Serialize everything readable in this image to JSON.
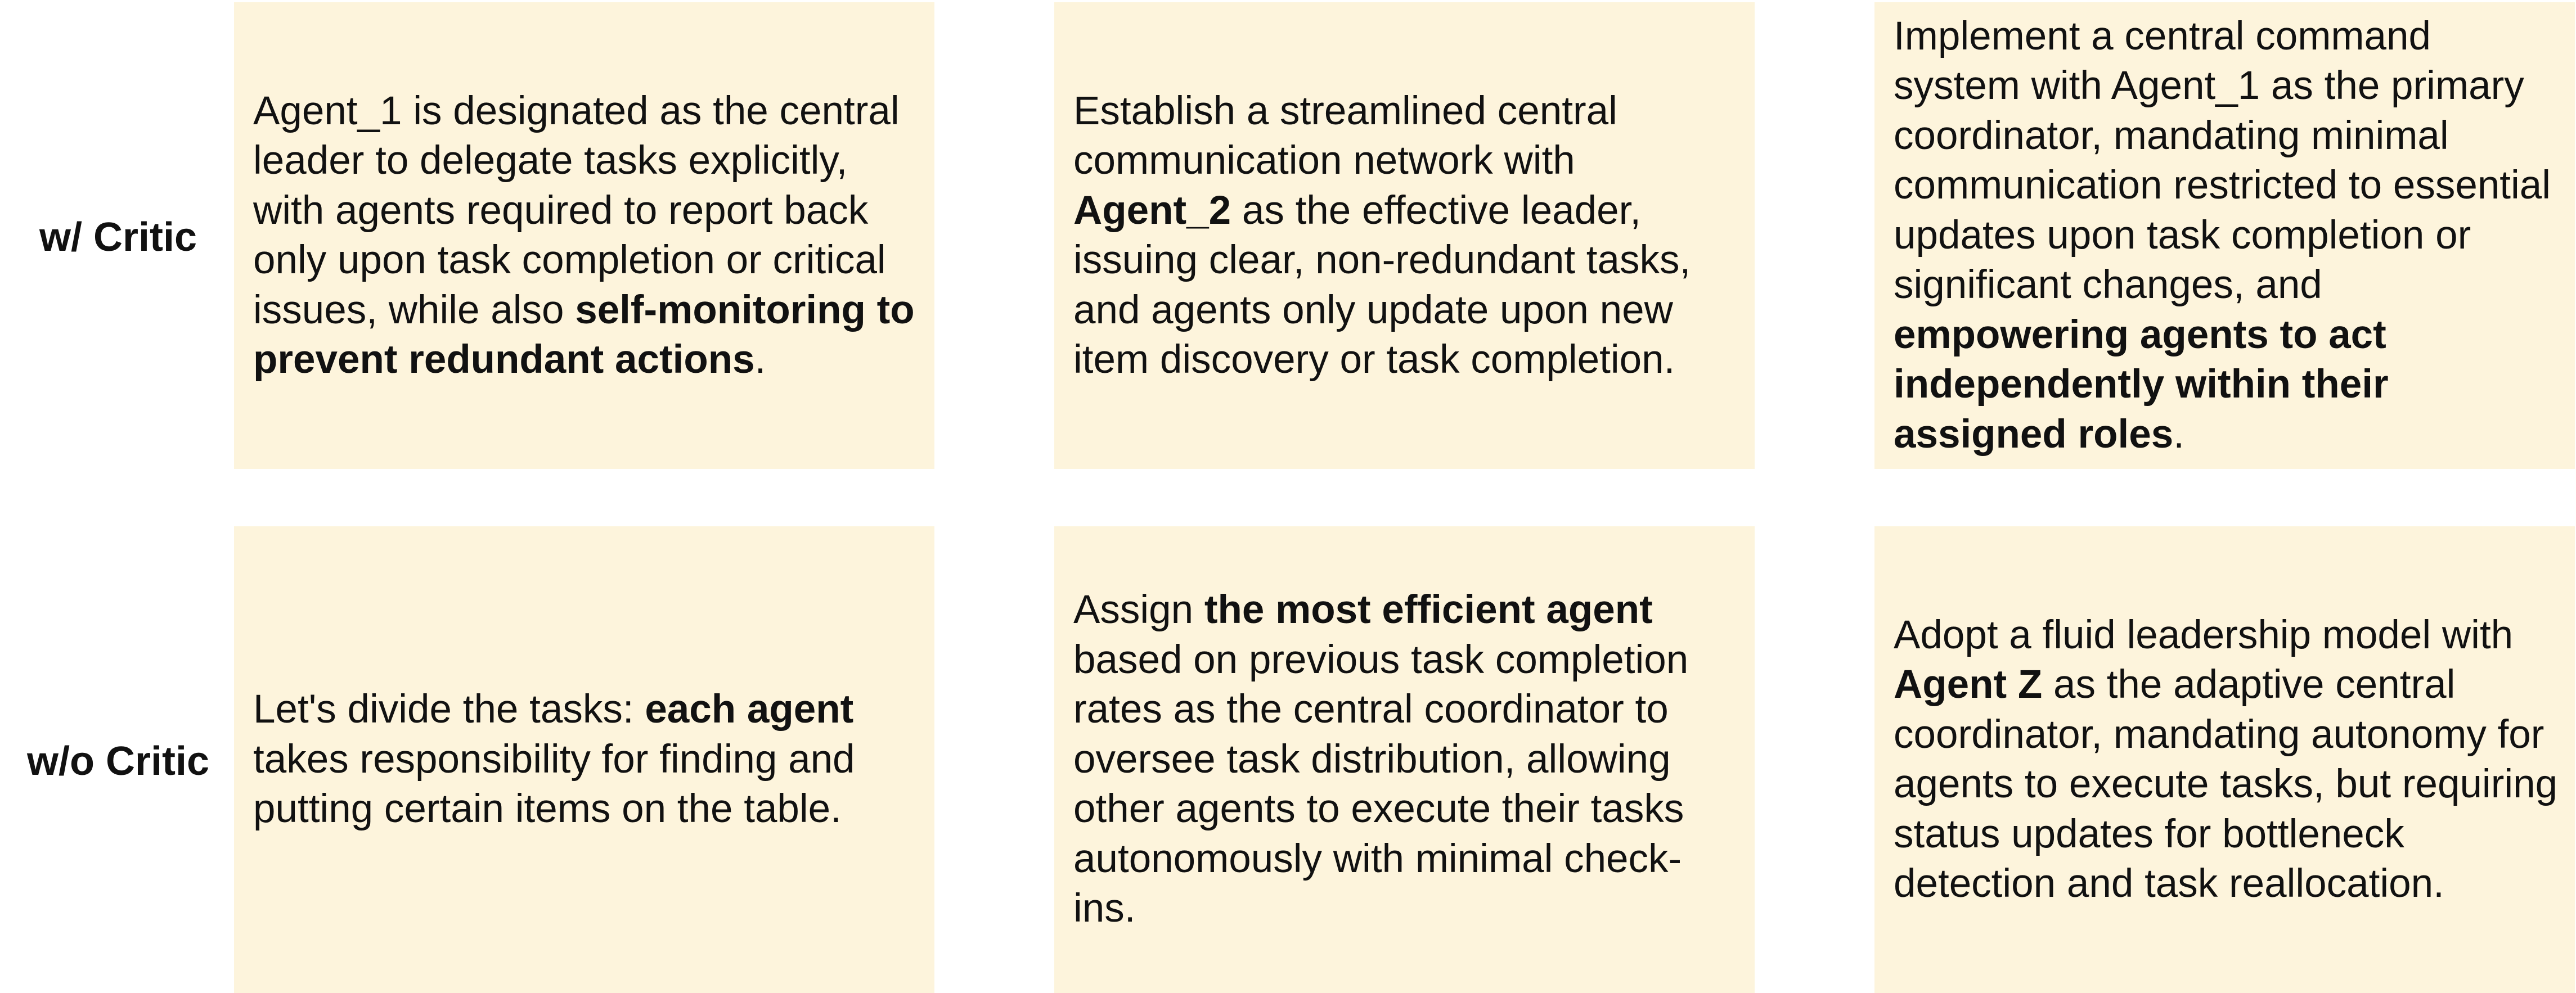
{
  "rows": [
    {
      "label": "w/ Critic",
      "cells": [
        {
          "pre": "Agent_1 is designated as the central leader to delegate tasks explicitly, with agents required to report back only upon task completion or critical issues, while also ",
          "bold": "self-monitoring to prevent redundant actions",
          "post": "."
        },
        {
          "pre": "Establish a streamlined central communication network with ",
          "bold": "Agent_2",
          "post": " as the effective leader, issuing clear, non-redundant tasks, and agents only update upon new item discovery or task completion."
        },
        {
          "pre": "Implement a central command system with Agent_1 as the primary coordinator, mandating minimal communication restricted to essential updates upon task completion or significant changes, and ",
          "bold": "empowering agents to act independently within their assigned roles",
          "post": "."
        }
      ]
    },
    {
      "label": "w/o Critic",
      "cells": [
        {
          "pre": "Let's divide the tasks: ",
          "bold": "each agent",
          "post": " takes responsibility for finding and putting certain items on the table."
        },
        {
          "pre": "Assign ",
          "bold": "the most efficient agent",
          "post": " based on previous task completion rates as the central coordinator to oversee task distribution, allowing other agents to execute their tasks autonomously with minimal check-ins."
        },
        {
          "pre": "Adopt a fluid leadership model with ",
          "bold": "Agent Z",
          "post": " as the adaptive central coordinator, mandating autonomy for agents to execute tasks, but requiring status updates for bottleneck detection and task reallocation."
        }
      ]
    }
  ],
  "colors": {
    "cell_background": "#fdf4dc",
    "text": "#111111"
  }
}
